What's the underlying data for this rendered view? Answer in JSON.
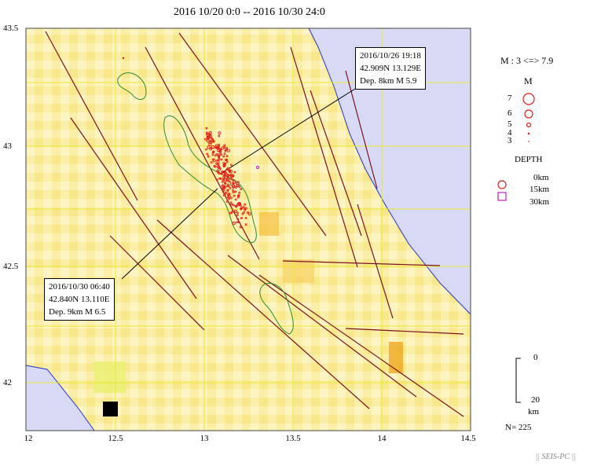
{
  "title": "2016 10/20 0:0 -- 2016 10/30 24:0",
  "axes": {
    "x_ticks": [
      "12",
      "12.5",
      "13",
      "13.5",
      "14",
      "14.5"
    ],
    "y_ticks": [
      "43.5",
      "43",
      "42.5",
      "42"
    ]
  },
  "events": [
    {
      "line1": "2016/10/26 19:18",
      "line2": "42.909N  13.129E",
      "line3": "Dep. 8km    M 5.9"
    },
    {
      "line1": "2016/10/30 06:40",
      "line2": "42.840N  13.110E",
      "line3": "Dep. 9km    M 6.5"
    }
  ],
  "legend": {
    "mag_range": "M : 3 <=> 7.9",
    "mag_title": "M",
    "mag_labels": [
      "7",
      "6",
      "5",
      "4",
      "3"
    ],
    "depth_title": "DEPTH",
    "depth_labels": [
      "0km",
      "15km",
      "30km"
    ],
    "scale_top": "0",
    "scale_bottom": "20",
    "scale_unit": "km",
    "count": "N= 225"
  },
  "credit": "|| SEIS-PC ||",
  "colors": {
    "sea": "#d8daf5",
    "land": "#fbeea8",
    "quake": "#e0201a",
    "fault": "#7a1020",
    "lake": "#2e8b2e",
    "grid": "#e8e830"
  }
}
